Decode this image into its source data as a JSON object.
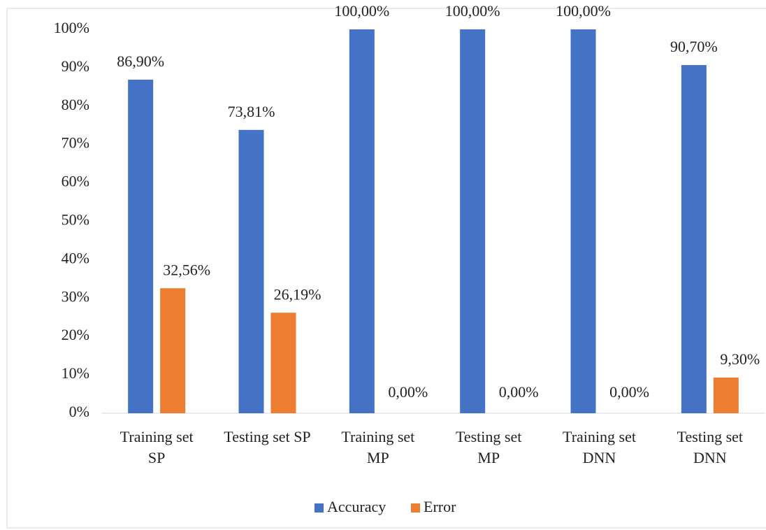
{
  "chart_data": {
    "type": "bar",
    "categories": [
      "Training set\nSP",
      "Testing set SP",
      "Training set\nMP",
      "Testing set\nMP",
      "Training set\nDNN",
      "Testing set\nDNN"
    ],
    "series": [
      {
        "name": "Accuracy",
        "color": "#4472c4",
        "values": [
          86.9,
          73.81,
          100,
          100,
          100,
          90.7
        ],
        "value_labels": [
          "86,90%",
          "73,81%",
          "100,00%",
          "100,00%",
          "100,00%",
          "90,70%"
        ]
      },
      {
        "name": "Error",
        "color": "#ed7d31",
        "values": [
          32.56,
          26.19,
          0,
          0,
          0,
          9.3
        ],
        "value_labels": [
          "32,56%",
          "26,19%",
          "0,00%",
          "0,00%",
          "0,00%",
          "9,30%"
        ]
      }
    ],
    "ylim": [
      0,
      100
    ],
    "yticks": [
      {
        "value": 0,
        "label": "0%"
      },
      {
        "value": 10,
        "label": "10%"
      },
      {
        "value": 20,
        "label": "20%"
      },
      {
        "value": 30,
        "label": "30%"
      },
      {
        "value": 40,
        "label": "40%"
      },
      {
        "value": 50,
        "label": "50%"
      },
      {
        "value": 60,
        "label": "60%"
      },
      {
        "value": 70,
        "label": "70%"
      },
      {
        "value": 80,
        "label": "80%"
      },
      {
        "value": 90,
        "label": "90%"
      },
      {
        "value": 100,
        "label": "100%"
      }
    ],
    "legend": "bottom"
  }
}
